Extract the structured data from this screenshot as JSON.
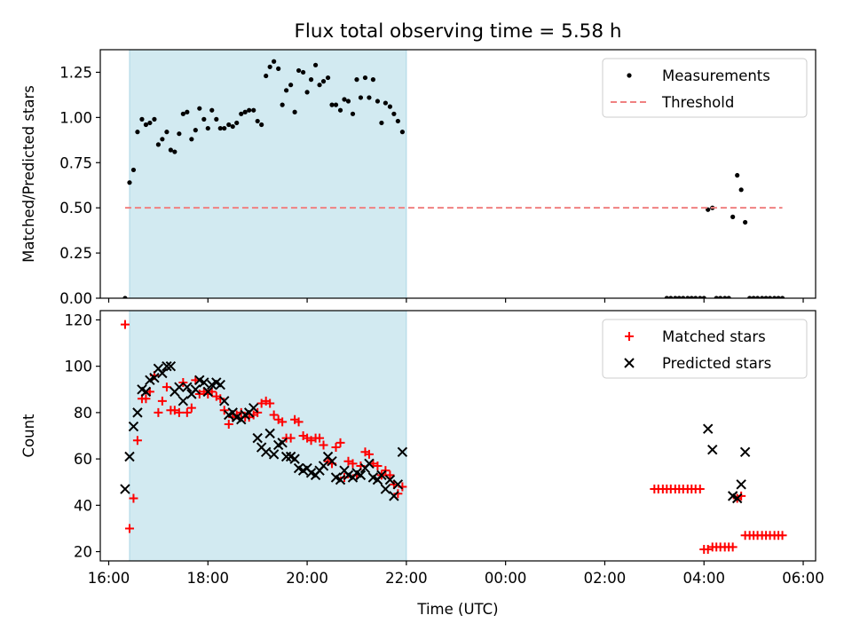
{
  "title": "Flux total observing time = 5.58 h",
  "chart_data": [
    {
      "type": "scatter",
      "ylabel": "Matched/Predicted stars",
      "xlim": [
        15.83,
        30.25
      ],
      "ylim": [
        0,
        1.375
      ],
      "yticks": [
        0,
        0.25,
        0.5,
        0.75,
        1.0,
        1.25
      ],
      "ytick_labels": [
        "0.00",
        "0.25",
        "0.50",
        "0.75",
        "1.00",
        "1.25"
      ],
      "x_unit": "hours since 16:00 UTC",
      "shaded_span": [
        16.42,
        22.0
      ],
      "shade_color": "#add8e6",
      "legend_position": "top-right",
      "series": [
        {
          "name": "Measurements",
          "kind": "dot",
          "color": "#000000",
          "x": [
            16.33,
            16.42,
            16.5,
            16.58,
            16.67,
            16.75,
            16.83,
            16.92,
            17.0,
            17.08,
            17.17,
            17.25,
            17.33,
            17.42,
            17.5,
            17.58,
            17.67,
            17.75,
            17.83,
            17.92,
            18.0,
            18.08,
            18.17,
            18.25,
            18.33,
            18.42,
            18.5,
            18.58,
            18.67,
            18.75,
            18.83,
            18.92,
            19.0,
            19.08,
            19.17,
            19.25,
            19.33,
            19.42,
            19.5,
            19.58,
            19.67,
            19.75,
            19.83,
            19.92,
            20.0,
            20.08,
            20.17,
            20.25,
            20.33,
            20.42,
            20.5,
            20.58,
            20.67,
            20.75,
            20.83,
            20.92,
            21.0,
            21.08,
            21.17,
            21.25,
            21.33,
            21.42,
            21.5,
            21.58,
            21.67,
            21.75,
            21.83,
            21.92,
            27.25,
            27.33,
            27.42,
            27.5,
            27.58,
            27.67,
            27.75,
            27.83,
            27.92,
            28.0,
            28.08,
            28.17,
            28.25,
            28.33,
            28.42,
            28.5,
            28.58,
            28.67,
            28.75,
            28.83,
            28.92,
            29.0,
            29.08,
            29.17,
            29.25,
            29.33,
            29.42,
            29.5,
            29.58
          ],
          "y": [
            0.0,
            0.64,
            0.71,
            0.92,
            0.99,
            0.96,
            0.97,
            0.99,
            0.85,
            0.88,
            0.92,
            0.82,
            0.81,
            0.91,
            1.02,
            1.03,
            0.88,
            0.93,
            1.05,
            0.99,
            0.94,
            1.04,
            0.99,
            0.94,
            0.94,
            0.96,
            0.95,
            0.97,
            1.02,
            1.03,
            1.04,
            1.04,
            0.98,
            0.96,
            1.23,
            1.28,
            1.31,
            1.27,
            1.07,
            1.15,
            1.18,
            1.03,
            1.26,
            1.25,
            1.14,
            1.21,
            1.29,
            1.18,
            1.2,
            1.22,
            1.07,
            1.07,
            1.04,
            1.1,
            1.09,
            1.02,
            1.21,
            1.11,
            1.22,
            1.11,
            1.21,
            1.09,
            0.97,
            1.08,
            1.06,
            1.02,
            0.98,
            0.92,
            0.0,
            0.0,
            0.0,
            0.0,
            0.0,
            0.0,
            0.0,
            0.0,
            0.0,
            0.0,
            0.49,
            0.5,
            0.0,
            0.0,
            0.0,
            0.0,
            0.45,
            0.68,
            0.6,
            0.42,
            0.0,
            0.0,
            0.0,
            0.0,
            0.0,
            0.0,
            0.0,
            0.0,
            0.0
          ]
        },
        {
          "name": "Threshold",
          "kind": "dashed-line",
          "color": "#f08080",
          "x": [
            16.33,
            29.58
          ],
          "y": [
            0.5,
            0.5
          ]
        }
      ]
    },
    {
      "type": "scatter",
      "ylabel": "Count",
      "xlabel": "Time (UTC)",
      "xlim": [
        15.83,
        30.25
      ],
      "ylim": [
        16,
        124
      ],
      "yticks": [
        20,
        40,
        60,
        80,
        100,
        120
      ],
      "ytick_labels": [
        "20",
        "40",
        "60",
        "80",
        "100",
        "120"
      ],
      "xticks": [
        16,
        18,
        20,
        22,
        24,
        26,
        28,
        30
      ],
      "xtick_labels": [
        "16:00",
        "18:00",
        "20:00",
        "22:00",
        "00:00",
        "02:00",
        "04:00",
        "06:00"
      ],
      "x_unit": "hours since 16:00 UTC",
      "shaded_span": [
        16.42,
        22.0
      ],
      "shade_color": "#add8e6",
      "legend_position": "top-right",
      "series": [
        {
          "name": "Matched stars",
          "kind": "plus",
          "color": "#ff0000",
          "x": [
            16.33,
            16.42,
            16.5,
            16.58,
            16.67,
            16.75,
            16.83,
            16.92,
            17.0,
            17.08,
            17.17,
            17.25,
            17.33,
            17.42,
            17.5,
            17.58,
            17.67,
            17.75,
            17.83,
            17.92,
            18.0,
            18.08,
            18.17,
            18.25,
            18.33,
            18.42,
            18.5,
            18.58,
            18.67,
            18.75,
            18.83,
            18.92,
            19.0,
            19.08,
            19.17,
            19.25,
            19.33,
            19.42,
            19.5,
            19.58,
            19.67,
            19.75,
            19.83,
            19.92,
            20.0,
            20.08,
            20.17,
            20.25,
            20.33,
            20.42,
            20.5,
            20.58,
            20.67,
            20.75,
            20.83,
            20.92,
            21.0,
            21.08,
            21.17,
            21.25,
            21.33,
            21.42,
            21.5,
            21.58,
            21.67,
            21.75,
            21.83,
            21.92,
            27.0,
            27.08,
            27.17,
            27.25,
            27.33,
            27.42,
            27.5,
            27.58,
            27.67,
            27.75,
            27.83,
            27.92,
            28.0,
            28.08,
            28.17,
            28.25,
            28.33,
            28.42,
            28.5,
            28.58,
            28.67,
            28.75,
            28.83,
            28.92,
            29.0,
            29.08,
            29.17,
            29.25,
            29.33,
            29.42,
            29.5,
            29.58
          ],
          "y": [
            118,
            30,
            43,
            68,
            86,
            86,
            89,
            96,
            80,
            85,
            91,
            81,
            81,
            80,
            93,
            80,
            82,
            94,
            88,
            89,
            88,
            89,
            87,
            86,
            81,
            75,
            78,
            79,
            80,
            78,
            78,
            79,
            80,
            84,
            85,
            84,
            79,
            77,
            76,
            69,
            69,
            77,
            76,
            70,
            69,
            68,
            69,
            69,
            66,
            59,
            58,
            65,
            67,
            52,
            59,
            58,
            53,
            57,
            63,
            62,
            58,
            57,
            53,
            55,
            53,
            49,
            45,
            48,
            47,
            47,
            47,
            47,
            47,
            47,
            47,
            47,
            47,
            47,
            47,
            47,
            21,
            21,
            22,
            22,
            22,
            22,
            22,
            22,
            43,
            44,
            27,
            27,
            27,
            27,
            27,
            27,
            27,
            27,
            27,
            27
          ]
        },
        {
          "name": "Predicted stars",
          "kind": "cross",
          "color": "#000000",
          "x": [
            16.33,
            16.42,
            16.5,
            16.58,
            16.67,
            16.75,
            16.83,
            16.92,
            17.0,
            17.08,
            17.17,
            17.25,
            17.33,
            17.42,
            17.5,
            17.58,
            17.67,
            17.75,
            17.83,
            17.92,
            18.0,
            18.08,
            18.17,
            18.25,
            18.33,
            18.42,
            18.5,
            18.58,
            18.67,
            18.75,
            18.83,
            18.92,
            19.0,
            19.08,
            19.17,
            19.25,
            19.33,
            19.42,
            19.5,
            19.58,
            19.67,
            19.75,
            19.83,
            19.92,
            20.0,
            20.08,
            20.17,
            20.25,
            20.33,
            20.42,
            20.5,
            20.58,
            20.67,
            20.75,
            20.83,
            20.92,
            21.0,
            21.08,
            21.17,
            21.25,
            21.33,
            21.42,
            21.5,
            21.58,
            21.67,
            21.75,
            21.83,
            21.92,
            28.08,
            28.17,
            28.58,
            28.67,
            28.75,
            28.83
          ],
          "y": [
            47,
            61,
            74,
            80,
            90,
            89,
            94,
            95,
            99,
            97,
            100,
            100,
            89,
            91,
            85,
            91,
            88,
            90,
            94,
            93,
            89,
            92,
            93,
            92,
            85,
            79,
            80,
            78,
            77,
            79,
            80,
            82,
            69,
            65,
            63,
            71,
            62,
            66,
            67,
            61,
            61,
            60,
            56,
            55,
            56,
            54,
            53,
            55,
            57,
            61,
            59,
            52,
            51,
            55,
            53,
            52,
            54,
            53,
            56,
            58,
            52,
            51,
            53,
            47,
            51,
            44,
            49,
            63,
            73,
            64,
            44,
            43,
            49,
            63
          ]
        }
      ]
    }
  ]
}
